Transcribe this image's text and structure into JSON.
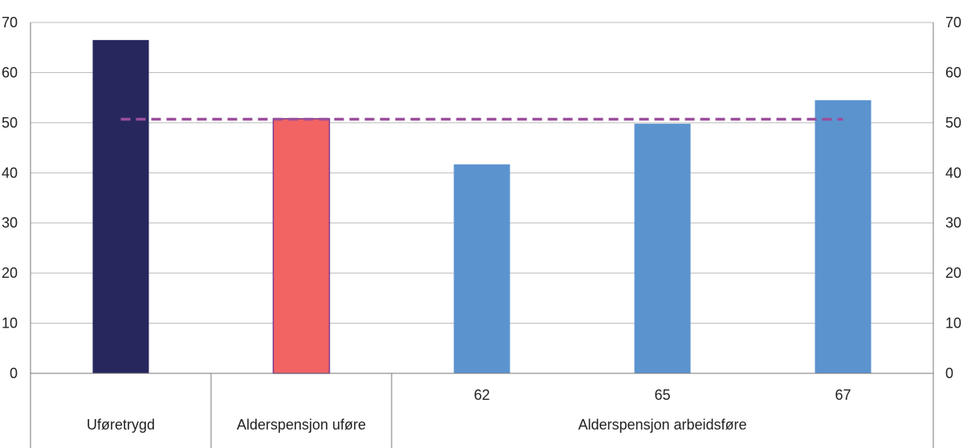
{
  "chart_data": {
    "type": "bar",
    "categories": [
      "Uføretrygd",
      "Alderspensjon uføre",
      "62",
      "65",
      "67"
    ],
    "group_labels": [
      "Uføretrygd",
      "Alderspensjon uføre",
      "Alderspensjon arbeidsføre"
    ],
    "values": [
      66.5,
      50.8,
      41.7,
      49.8,
      54.5
    ],
    "bar_colors": [
      "#27275e",
      "#f26363",
      "#5b93cf",
      "#5b93cf",
      "#5b93cf"
    ],
    "bar_outline_colors": [
      "none",
      "#7a3d8f",
      "none",
      "none",
      "none"
    ],
    "reference_line": {
      "value": 50.7,
      "color": "#9b4f9b",
      "style": "dashed"
    },
    "ylim": [
      0,
      70
    ],
    "yticks": [
      "0",
      "10",
      "20",
      "30",
      "40",
      "50",
      "60",
      "70"
    ],
    "ytick_values": [
      0,
      10,
      20,
      30,
      40,
      50,
      60,
      70
    ],
    "title": "",
    "xlabel": "",
    "ylabel": "",
    "grid": true,
    "dual_y_axis": true
  }
}
